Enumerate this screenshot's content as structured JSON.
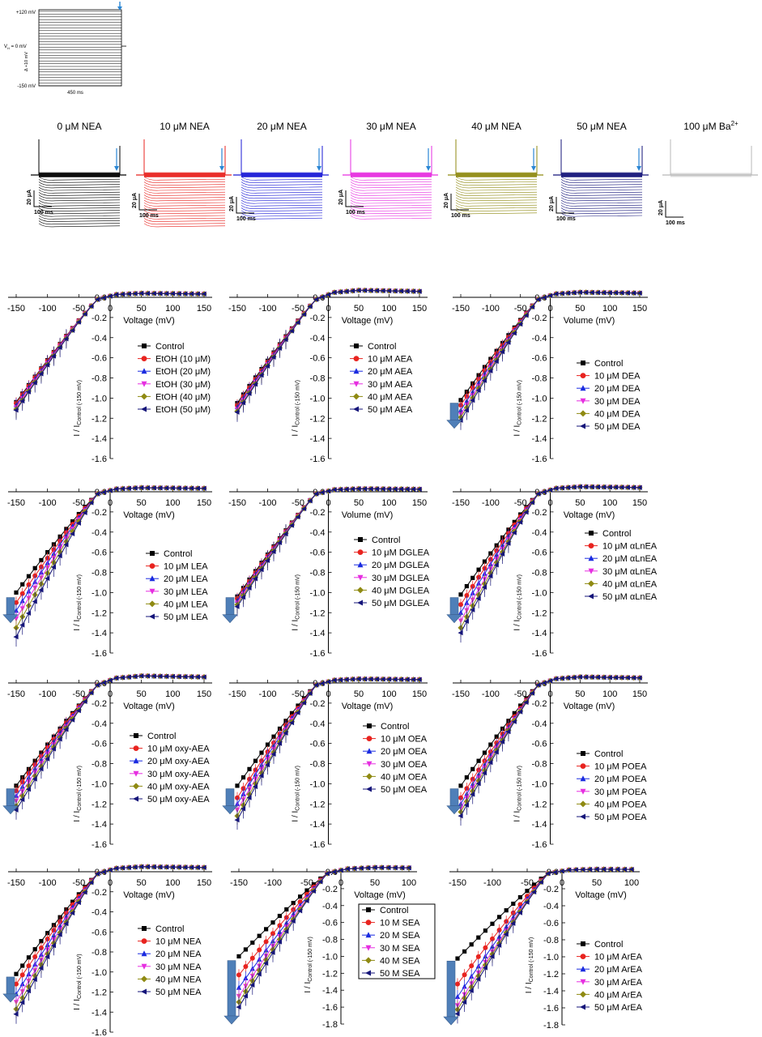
{
  "protocol": {
    "top_label": "+120 mV",
    "vh_label": "V",
    "vh_sub": "H",
    "vh_tail": " = 0 mV",
    "step_label": "Δ  +10 mV",
    "bottom_label": "-150 mV",
    "duration_label": "450 ms"
  },
  "traces": [
    {
      "title": "0 μM NEA",
      "color": "#000000",
      "scale_y": "20 μA",
      "scale_x": "100 ms"
    },
    {
      "title": "10 μM NEA",
      "color": "#e8231f",
      "scale_y": "20 μA",
      "scale_x": "100 ms"
    },
    {
      "title": "20 μM NEA",
      "color": "#1a1ad6",
      "scale_y": "20 μA",
      "scale_x": "100 ms"
    },
    {
      "title": "30 μM NEA",
      "color": "#e62ee0",
      "scale_y": "20 μA",
      "scale_x": "100 ms"
    },
    {
      "title": "40 μM NEA",
      "color": "#8f8a12",
      "scale_y": "20 μA",
      "scale_x": "100 ms"
    },
    {
      "title": "50 μM NEA",
      "color": "#15157a",
      "scale_y": "20 μA",
      "scale_x": "100 ms"
    },
    {
      "title": "100 μM Ba",
      "superscript": "2+",
      "color": "#b8b8b8",
      "scale_y": "20 μA",
      "scale_x": "100 ms"
    }
  ],
  "series_colors": [
    "#000000",
    "#e8231f",
    "#1a2be0",
    "#e62ee0",
    "#8f8a12",
    "#15157a"
  ],
  "arrow_color": "#4f7fb8",
  "chart_data": [
    {
      "type": "line",
      "xlabel": "Voltage (mV)",
      "ylabel": "I / I",
      "ylabel_sub": "Control (-150 mV)",
      "xlim": [
        -150,
        150
      ],
      "xticks": [
        -150,
        -100,
        -50,
        0,
        50,
        100,
        150
      ],
      "ylim": [
        -1.6,
        0.0
      ],
      "yticks": [
        0.0,
        -0.2,
        -0.4,
        -0.6,
        -0.8,
        -1.0,
        -1.2,
        -1.4,
        -1.6
      ],
      "legend": [
        "Control",
        "EtOH (10 μM)",
        "EtOH (20 μM)",
        "EtOH (30 μM)",
        "EtOH (40 μM)",
        "EtOH (50 μM)"
      ],
      "min_values": [
        -1.02,
        -1.03,
        -1.05,
        -1.07,
        -1.09,
        -1.1
      ],
      "pos_max": 0.04,
      "arrow": false
    },
    {
      "type": "line",
      "xlabel": "Voltage (mV)",
      "ylabel": "I / I",
      "ylabel_sub": "Control (-150 mV)",
      "xlim": [
        -150,
        150
      ],
      "xticks": [
        -150,
        -100,
        -50,
        0,
        50,
        100,
        150
      ],
      "ylim": [
        -1.6,
        0.0
      ],
      "yticks": [
        0.0,
        -0.2,
        -0.4,
        -0.6,
        -0.8,
        -1.0,
        -1.2,
        -1.4,
        -1.6
      ],
      "legend": [
        "Control",
        "10 μM AEA",
        "20 μM AEA",
        "30 μM AEA",
        "40 μM AEA",
        "50 μM AEA"
      ],
      "min_values": [
        -1.03,
        -1.05,
        -1.07,
        -1.09,
        -1.11,
        -1.12
      ],
      "pos_max": 0.07,
      "arrow": false
    },
    {
      "type": "line",
      "xlabel": "Volume (mV)",
      "ylabel": "I / I",
      "ylabel_sub": "Control (-150 mV)",
      "xlim": [
        -150,
        150
      ],
      "xticks": [
        -150,
        -100,
        -50,
        0,
        50,
        100,
        150
      ],
      "ylim": [
        -1.6,
        0.0
      ],
      "yticks": [
        0.0,
        -0.2,
        -0.4,
        -0.6,
        -0.8,
        -1.0,
        -1.2,
        -1.4,
        -1.6
      ],
      "legend": [
        "Control",
        "10 μM DEA",
        "20 μM DEA",
        "30 μM DEA",
        "40 μM DEA",
        "50 μM DEA"
      ],
      "min_values": [
        -1.0,
        -1.05,
        -1.1,
        -1.14,
        -1.17,
        -1.2
      ],
      "pos_max": 0.05,
      "arrow": true
    },
    {
      "type": "line",
      "xlabel": "Voltage (mV)",
      "ylabel": "I / I",
      "ylabel_sub": "Control (-150 mV)",
      "xlim": [
        -150,
        150
      ],
      "xticks": [
        -150,
        -100,
        -50,
        0,
        50,
        100,
        150
      ],
      "ylim": [
        -1.6,
        0.0
      ],
      "yticks": [
        0.0,
        -0.2,
        -0.4,
        -0.6,
        -0.8,
        -1.0,
        -1.2,
        -1.4,
        -1.6
      ],
      "legend": [
        "Control",
        "10 μM LEA",
        "20 μM LEA",
        "30 μM LEA",
        "40 μM LEA",
        "50 μM LEA"
      ],
      "min_values": [
        -0.98,
        -1.08,
        -1.16,
        -1.24,
        -1.33,
        -1.42
      ],
      "pos_max": 0.04,
      "arrow": true
    },
    {
      "type": "line",
      "xlabel": "Volume (mV)",
      "ylabel": "I / I",
      "ylabel_sub": "Control (-150 mV)",
      "xlim": [
        -150,
        150
      ],
      "xticks": [
        -150,
        -100,
        -50,
        0,
        50,
        100,
        150
      ],
      "ylim": [
        -1.6,
        0.0
      ],
      "yticks": [
        0.0,
        -0.2,
        -0.4,
        -0.6,
        -0.8,
        -1.0,
        -1.2,
        -1.4,
        -1.6
      ],
      "legend": [
        "Control",
        "10 μM DGLEA",
        "20 μM DGLEA",
        "30 μM DGLEA",
        "40 μM DGLEA",
        "50 μM DGLEA"
      ],
      "min_values": [
        -1.02,
        -1.04,
        -1.06,
        -1.08,
        -1.1,
        -1.12
      ],
      "pos_max": 0.03,
      "arrow": true
    },
    {
      "type": "line",
      "xlabel": "Voltage (mV)",
      "ylabel": "I / I",
      "ylabel_sub": "Control (-150 mV)",
      "xlim": [
        -150,
        150
      ],
      "xticks": [
        -150,
        -100,
        -50,
        0,
        50,
        100,
        150
      ],
      "ylim": [
        -1.6,
        0.0
      ],
      "yticks": [
        0.0,
        -0.2,
        -0.4,
        -0.6,
        -0.8,
        -1.0,
        -1.2,
        -1.4,
        -1.6
      ],
      "legend": [
        "Control",
        "10 μM αLnEA",
        "20 μM αLnEA",
        "30 μM αLnEA",
        "40 μM αLnEA",
        "50 μM αLnEA"
      ],
      "min_values": [
        -1.0,
        -1.1,
        -1.18,
        -1.26,
        -1.33,
        -1.38
      ],
      "pos_max": 0.05,
      "arrow": true
    },
    {
      "type": "line",
      "xlabel": "Voltage (mV)",
      "ylabel": "I / I",
      "ylabel_sub": "Control (-150 mV)",
      "xlim": [
        -150,
        150
      ],
      "xticks": [
        -150,
        -100,
        -50,
        0,
        50,
        100,
        150
      ],
      "ylim": [
        -1.6,
        0.0
      ],
      "yticks": [
        0.0,
        -0.2,
        -0.4,
        -0.6,
        -0.8,
        -1.0,
        -1.2,
        -1.4,
        -1.6
      ],
      "legend": [
        "Control",
        "10 μM oxy-AEA",
        "20 μM oxy-AEA",
        "30 μM oxy-AEA",
        "40 μM oxy-AEA",
        "50 μM oxy-AEA"
      ],
      "min_values": [
        -1.0,
        -1.05,
        -1.1,
        -1.15,
        -1.2,
        -1.24
      ],
      "pos_max": 0.07,
      "arrow": true
    },
    {
      "type": "line",
      "xlabel": "Voltage (mV)",
      "ylabel": "I / I",
      "ylabel_sub": "Control (-150 mV)",
      "xlim": [
        -150,
        150
      ],
      "xticks": [
        -150,
        -100,
        -50,
        0,
        50,
        100,
        150
      ],
      "ylim": [
        -1.6,
        0.0
      ],
      "yticks": [
        0.0,
        -0.2,
        -0.4,
        -0.6,
        -0.8,
        -1.0,
        -1.2,
        -1.4,
        -1.6
      ],
      "legend": [
        "Control",
        "10 μM OEA",
        "20 μM OEA",
        "30 μM OEA",
        "40 μM OEA",
        "50 μM OEA"
      ],
      "min_values": [
        -1.0,
        -1.12,
        -1.18,
        -1.24,
        -1.3,
        -1.34
      ],
      "pos_max": 0.04,
      "arrow": true
    },
    {
      "type": "line",
      "xlabel": "Voltage (mV)",
      "ylabel": "I / I",
      "ylabel_sub": "Control (-150 mV)",
      "xlim": [
        -150,
        150
      ],
      "xticks": [
        -150,
        -100,
        -50,
        0,
        50,
        100,
        150
      ],
      "ylim": [
        -1.6,
        0.0
      ],
      "yticks": [
        0.0,
        -0.2,
        -0.4,
        -0.6,
        -0.8,
        -1.0,
        -1.2,
        -1.4,
        -1.6
      ],
      "legend": [
        "Control",
        "10 μM POEA",
        "20 μM POEA",
        "30 μM POEA",
        "40 μM POEA",
        "50 μM POEA"
      ],
      "min_values": [
        -1.0,
        -1.12,
        -1.18,
        -1.22,
        -1.26,
        -1.3
      ],
      "pos_max": 0.06,
      "arrow": true
    },
    {
      "type": "line",
      "xlabel": "Voltage (mV)",
      "ylabel": "I / I",
      "ylabel_sub": "Control (-150 mV)",
      "xlim": [
        -150,
        150
      ],
      "xticks": [
        -150,
        -100,
        -50,
        0,
        50,
        100,
        150
      ],
      "ylim": [
        -1.6,
        0.0
      ],
      "yticks": [
        0.0,
        -0.2,
        -0.4,
        -0.6,
        -0.8,
        -1.0,
        -1.2,
        -1.4,
        -1.6
      ],
      "legend": [
        "Control",
        "10 μM NEA",
        "20 μM NEA",
        "30 μM NEA",
        "40 μM NEA",
        "50 μM NEA"
      ],
      "min_values": [
        -1.0,
        -1.1,
        -1.2,
        -1.28,
        -1.35,
        -1.4
      ],
      "pos_max": 0.05,
      "arrow": true
    },
    {
      "type": "line",
      "xlabel": "Voltage (mV)",
      "ylabel": "I / I",
      "ylabel_sub": "Control (-150 mV)",
      "xlim": [
        -150,
        100
      ],
      "xticks": [
        -150,
        -100,
        -50,
        0,
        50,
        100
      ],
      "ylim": [
        -1.8,
        0.0
      ],
      "yticks": [
        0.0,
        -0.2,
        -0.4,
        -0.6,
        -0.8,
        -1.0,
        -1.2,
        -1.4,
        -1.6,
        -1.8
      ],
      "legend": [
        "Control",
        "10    M SEA",
        "20    M SEA",
        "30    M SEA",
        "40    M SEA",
        "50    M SEA"
      ],
      "min_values": [
        -0.98,
        -1.2,
        -1.35,
        -1.45,
        -1.52,
        -1.58
      ],
      "pos_max": 0.05,
      "arrow": true,
      "legend_boxed": true
    },
    {
      "type": "line",
      "xlabel": "Voltage (mV)",
      "ylabel": "I / I",
      "ylabel_sub": "Control (-150 mV)",
      "xlim": [
        -150,
        100
      ],
      "xticks": [
        -150,
        -100,
        -50,
        0,
        50,
        100
      ],
      "ylim": [
        -1.8,
        0.0
      ],
      "yticks": [
        0.0,
        -0.2,
        -0.4,
        -0.6,
        -0.8,
        -1.0,
        -1.2,
        -1.4,
        -1.6,
        -1.8
      ],
      "legend": [
        "Control",
        "10 μM ArEA",
        "20 μM ArEA",
        "30 μM ArEA",
        "40 μM ArEA",
        "50 μM ArEA"
      ],
      "min_values": [
        -1.0,
        -1.3,
        -1.45,
        -1.55,
        -1.6,
        -1.65
      ],
      "pos_max": 0.03,
      "arrow": true
    }
  ]
}
